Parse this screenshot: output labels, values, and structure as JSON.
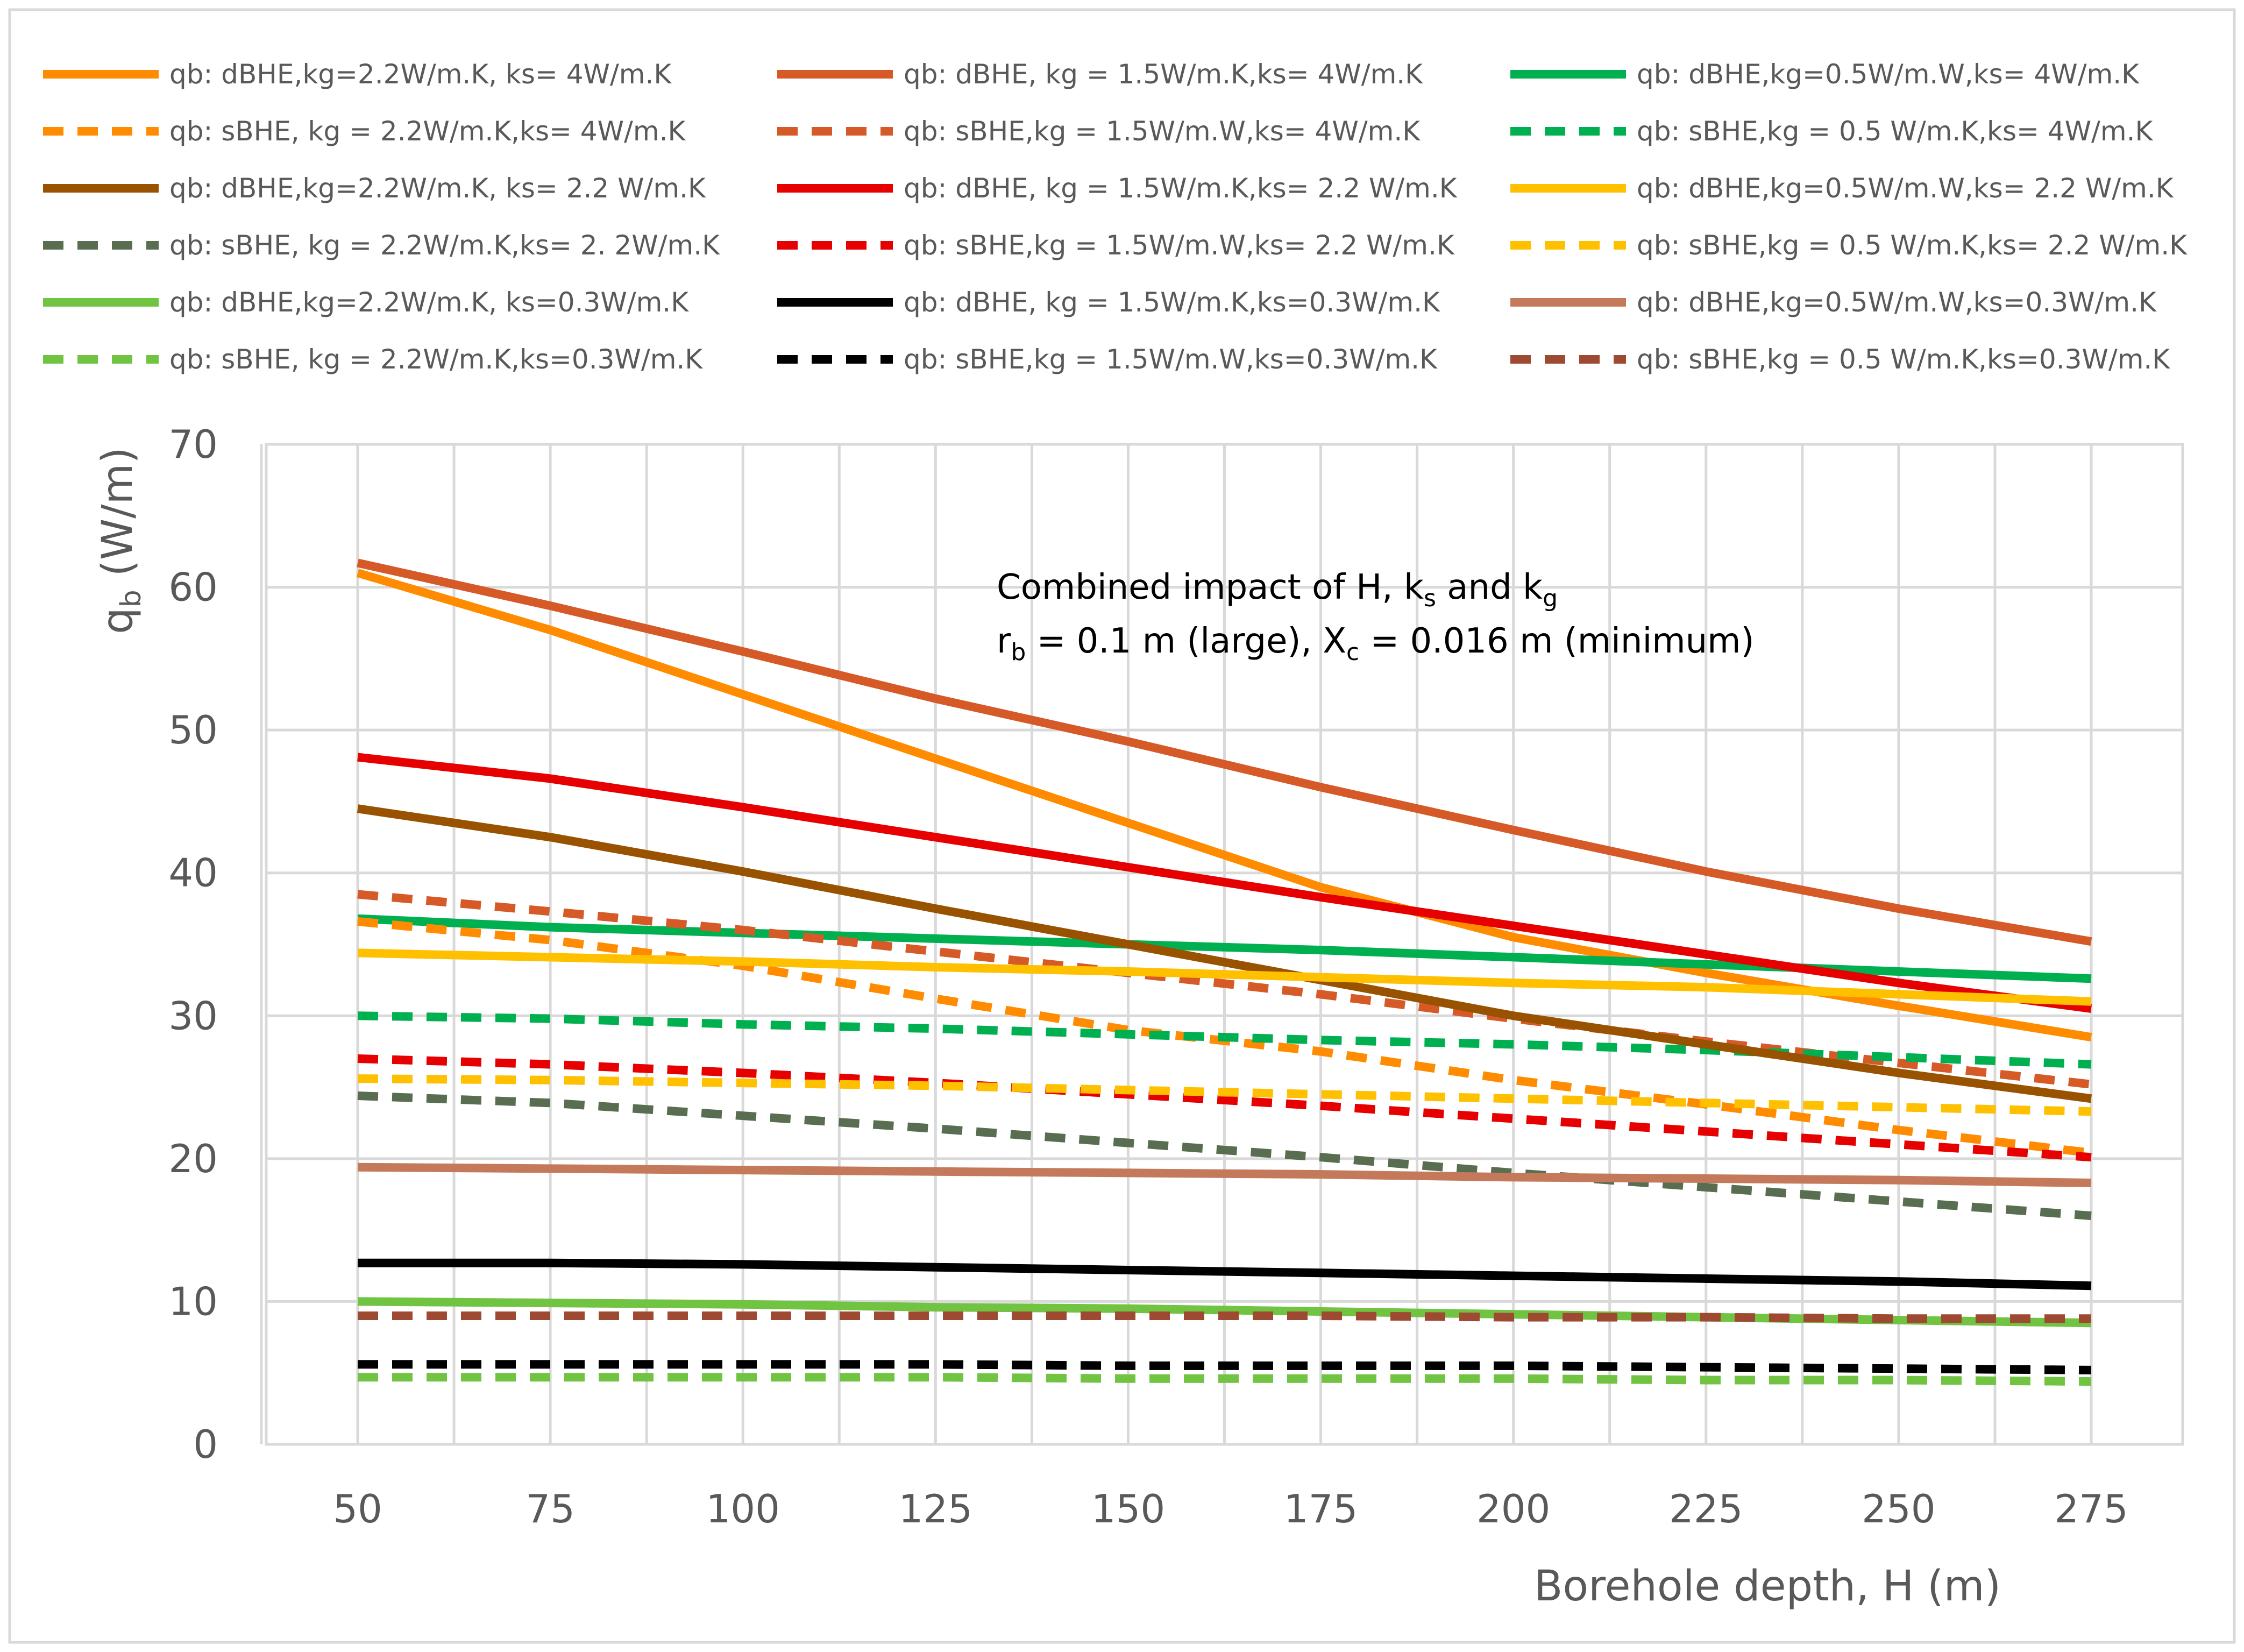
{
  "chart_data": {
    "type": "line",
    "title": "",
    "xlabel": "Borehole depth, H (m)",
    "ylabel": "q_b (W/m)",
    "ylabel_main": "q",
    "ylabel_sub": "b",
    "ylabel_rest": " (W/m)",
    "x": [
      50,
      75,
      100,
      125,
      150,
      175,
      200,
      225,
      250,
      275
    ],
    "xlim": [
      50,
      275
    ],
    "ylim": [
      0,
      70
    ],
    "x_ticks": [
      "50",
      "75",
      "100",
      "125",
      "150",
      "175",
      "200",
      "225",
      "250",
      "275"
    ],
    "y_ticks": [
      "0",
      "10",
      "20",
      "30",
      "40",
      "50",
      "60",
      "70"
    ],
    "grid": true,
    "legend_position": "top",
    "annotation": {
      "line1_a": "Combined impact of H, k",
      "line1_sub1": "s",
      "line1_b": " and k",
      "line1_sub2": "g",
      "line2_a": "r",
      "line2_sub1": "b",
      "line2_b": " = 0.1 m (large), X",
      "line2_sub2": "c",
      "line2_c": " = 0.016 m (minimum)"
    },
    "series": [
      {
        "name": "qb: dBHE,kg=2.2W/m.K, ks= 4W/m.K",
        "color": "#ff8c00",
        "dash": "solid",
        "values": [
          61,
          57,
          52.5,
          48,
          43.5,
          39,
          35.5,
          33,
          30.7,
          28.5
        ]
      },
      {
        "name": "qb: dBHE, kg = 1.5W/m.K,ks= 4W/m.K",
        "color": "#d65a28",
        "dash": "solid",
        "values": [
          61.7,
          58.7,
          55.5,
          52.2,
          49.2,
          46,
          43,
          40.1,
          37.5,
          35.2
        ]
      },
      {
        "name": "qb: dBHE,kg=0.5W/m.W,ks= 4W/m.K",
        "color": "#00b050",
        "dash": "solid",
        "values": [
          36.8,
          36.2,
          35.8,
          35.4,
          35,
          34.6,
          34.1,
          33.6,
          33.1,
          32.6
        ]
      },
      {
        "name": "qb: sBHE, kg = 2.2W/m.K,ks= 4W/m.K",
        "color": "#ff8c00",
        "dash": "dashed",
        "values": [
          36.6,
          35.3,
          33.5,
          31.2,
          29,
          27.5,
          25.5,
          23.8,
          22,
          20.4
        ]
      },
      {
        "name": "qb: sBHE,kg = 1.5W/m.W,ks= 4W/m.K",
        "color": "#d65a28",
        "dash": "dashed",
        "values": [
          38.5,
          37.3,
          36,
          34.5,
          33,
          31.5,
          29.8,
          28.2,
          26.7,
          25.2
        ]
      },
      {
        "name": "qb: sBHE,kg = 0.5 W/m.K,ks= 4W/m.K",
        "color": "#00b050",
        "dash": "dashed",
        "values": [
          30,
          29.8,
          29.4,
          29.1,
          28.7,
          28.3,
          28,
          27.6,
          27.1,
          26.6
        ]
      },
      {
        "name": "qb: dBHE,kg=2.2W/m.K, ks= 2.2 W/m.K",
        "color": "#995200",
        "dash": "solid",
        "values": [
          44.5,
          42.5,
          40.1,
          37.5,
          35,
          32.5,
          30,
          28,
          26,
          24.2
        ]
      },
      {
        "name": "qb: dBHE, kg = 1.5W/m.K,ks= 2.2 W/m.K",
        "color": "#e60000",
        "dash": "solid",
        "values": [
          48.1,
          46.6,
          44.6,
          42.5,
          40.4,
          38.3,
          36.3,
          34.3,
          32.3,
          30.5
        ]
      },
      {
        "name": "qb: dBHE,kg=0.5W/m.W,ks= 2.2 W/m.K",
        "color": "#ffc000",
        "dash": "solid",
        "values": [
          34.4,
          34.1,
          33.8,
          33.4,
          33.1,
          32.7,
          32.3,
          32,
          31.5,
          31
        ]
      },
      {
        "name": "qb: sBHE, kg = 2.2W/m.K,ks= 2. 2W/m.K",
        "color": "#596e50",
        "dash": "dashed",
        "values": [
          24.4,
          23.9,
          23,
          22.1,
          21.1,
          20.1,
          19,
          18,
          17,
          16
        ]
      },
      {
        "name": "qb: sBHE,kg = 1.5W/m.W,ks= 2.2 W/m.K",
        "color": "#e60000",
        "dash": "dashed",
        "values": [
          27,
          26.6,
          26,
          25.3,
          24.5,
          23.7,
          22.8,
          21.9,
          21,
          20.1
        ]
      },
      {
        "name": "qb: sBHE,kg = 0.5 W/m.K,ks= 2.2 W/m.K",
        "color": "#ffc000",
        "dash": "dashed",
        "values": [
          25.6,
          25.5,
          25.3,
          25.1,
          24.8,
          24.5,
          24.2,
          23.9,
          23.6,
          23.3
        ]
      },
      {
        "name": "qb: dBHE,kg=2.2W/m.K, ks=0.3W/m.K",
        "color": "#70c441",
        "dash": "solid",
        "values": [
          10,
          9.9,
          9.8,
          9.6,
          9.5,
          9.3,
          9.1,
          8.9,
          8.7,
          8.5
        ]
      },
      {
        "name": "qb: dBHE, kg = 1.5W/m.K,ks=0.3W/m.K",
        "color": "#000000",
        "dash": "solid",
        "values": [
          12.7,
          12.7,
          12.6,
          12.4,
          12.2,
          12,
          11.8,
          11.6,
          11.4,
          11.1
        ]
      },
      {
        "name": "qb: dBHE,kg=0.5W/m.W,ks=0.3W/m.K",
        "color": "#c47a5a",
        "dash": "solid",
        "values": [
          19.4,
          19.3,
          19.2,
          19.1,
          19,
          18.9,
          18.7,
          18.6,
          18.5,
          18.3
        ]
      },
      {
        "name": "qb: sBHE, kg = 2.2W/m.K,ks=0.3W/m.K",
        "color": "#70c441",
        "dash": "dashed",
        "values": [
          4.7,
          4.7,
          4.7,
          4.7,
          4.6,
          4.6,
          4.6,
          4.5,
          4.5,
          4.4
        ]
      },
      {
        "name": "qb: sBHE,kg = 1.5W/m.W,ks=0.3W/m.K",
        "color": "#000000",
        "dash": "dashed",
        "values": [
          5.6,
          5.6,
          5.6,
          5.6,
          5.5,
          5.5,
          5.5,
          5.4,
          5.3,
          5.2
        ]
      },
      {
        "name": "qb: sBHE,kg = 0.5 W/m.K,ks=0.3W/m.K",
        "color": "#9e4a32",
        "dash": "dashed",
        "values": [
          9,
          9,
          9,
          9,
          9,
          9,
          8.9,
          8.9,
          8.8,
          8.8
        ]
      }
    ]
  }
}
